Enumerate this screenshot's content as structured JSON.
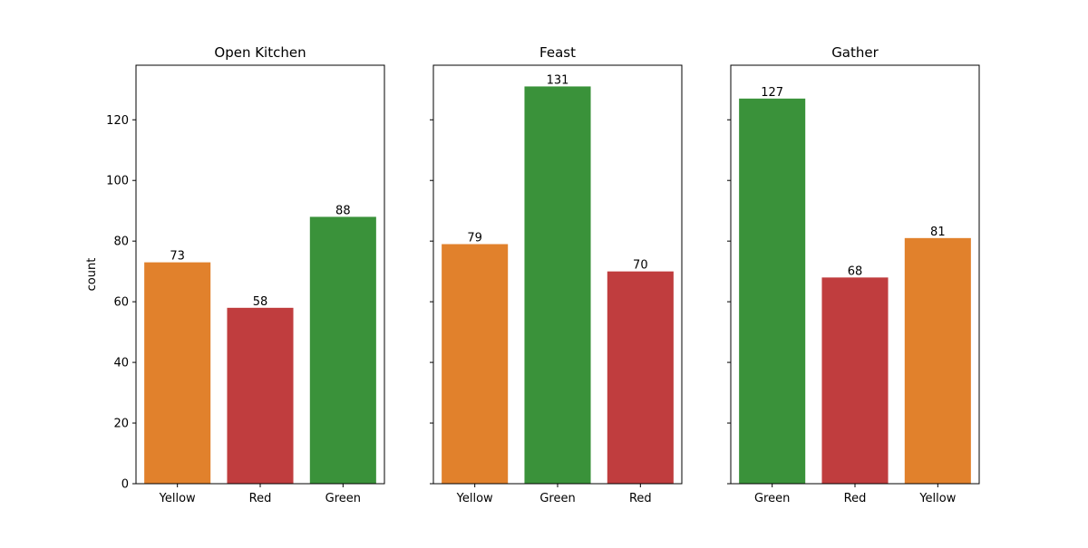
{
  "chart_data": {
    "type": "bar",
    "ylabel": "count",
    "ylim": [
      0,
      138
    ],
    "yticks": [
      0,
      20,
      40,
      60,
      80,
      100,
      120
    ],
    "sharey": true,
    "grid": false,
    "colors": {
      "Yellow": "#e1812c",
      "Red": "#c03d3e",
      "Green": "#3a923a"
    },
    "panels": [
      {
        "title": "Open Kitchen",
        "categories": [
          "Yellow",
          "Red",
          "Green"
        ],
        "values": [
          73,
          58,
          88
        ]
      },
      {
        "title": "Feast",
        "categories": [
          "Yellow",
          "Green",
          "Red"
        ],
        "values": [
          79,
          131,
          70
        ]
      },
      {
        "title": "Gather",
        "categories": [
          "Green",
          "Red",
          "Yellow"
        ],
        "values": [
          127,
          68,
          81
        ]
      }
    ]
  }
}
